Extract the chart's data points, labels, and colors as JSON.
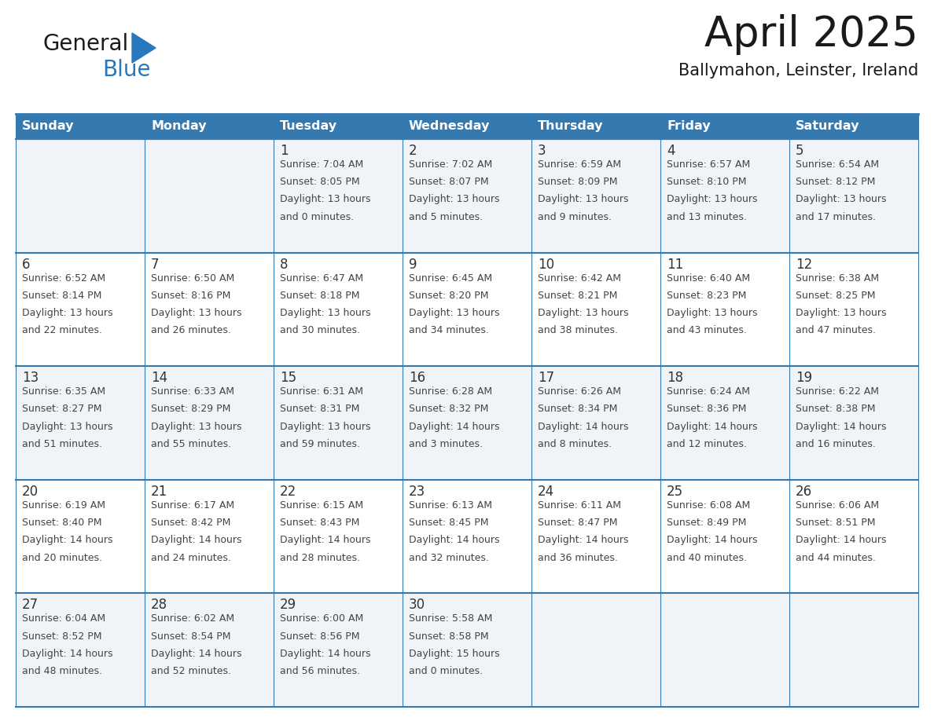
{
  "title": "April 2025",
  "subtitle": "Ballymahon, Leinster, Ireland",
  "header_bg_color": "#3579b1",
  "header_text_color": "#ffffff",
  "weekdays": [
    "Sunday",
    "Monday",
    "Tuesday",
    "Wednesday",
    "Thursday",
    "Friday",
    "Saturday"
  ],
  "row_bg_colors": [
    "#f0f4f8",
    "#ffffff",
    "#f0f4f8",
    "#ffffff",
    "#f0f4f8"
  ],
  "cell_text_color": "#444444",
  "date_text_color": "#333333",
  "border_color": "#3579b1",
  "days": [
    {
      "day": "",
      "col": 0,
      "row": 0,
      "sunrise": "",
      "sunset": "",
      "daylight_l1": "",
      "daylight_l2": ""
    },
    {
      "day": "",
      "col": 1,
      "row": 0,
      "sunrise": "",
      "sunset": "",
      "daylight_l1": "",
      "daylight_l2": ""
    },
    {
      "day": "1",
      "col": 2,
      "row": 0,
      "sunrise": "Sunrise: 7:04 AM",
      "sunset": "Sunset: 8:05 PM",
      "daylight_l1": "Daylight: 13 hours",
      "daylight_l2": "and 0 minutes."
    },
    {
      "day": "2",
      "col": 3,
      "row": 0,
      "sunrise": "Sunrise: 7:02 AM",
      "sunset": "Sunset: 8:07 PM",
      "daylight_l1": "Daylight: 13 hours",
      "daylight_l2": "and 5 minutes."
    },
    {
      "day": "3",
      "col": 4,
      "row": 0,
      "sunrise": "Sunrise: 6:59 AM",
      "sunset": "Sunset: 8:09 PM",
      "daylight_l1": "Daylight: 13 hours",
      "daylight_l2": "and 9 minutes."
    },
    {
      "day": "4",
      "col": 5,
      "row": 0,
      "sunrise": "Sunrise: 6:57 AM",
      "sunset": "Sunset: 8:10 PM",
      "daylight_l1": "Daylight: 13 hours",
      "daylight_l2": "and 13 minutes."
    },
    {
      "day": "5",
      "col": 6,
      "row": 0,
      "sunrise": "Sunrise: 6:54 AM",
      "sunset": "Sunset: 8:12 PM",
      "daylight_l1": "Daylight: 13 hours",
      "daylight_l2": "and 17 minutes."
    },
    {
      "day": "6",
      "col": 0,
      "row": 1,
      "sunrise": "Sunrise: 6:52 AM",
      "sunset": "Sunset: 8:14 PM",
      "daylight_l1": "Daylight: 13 hours",
      "daylight_l2": "and 22 minutes."
    },
    {
      "day": "7",
      "col": 1,
      "row": 1,
      "sunrise": "Sunrise: 6:50 AM",
      "sunset": "Sunset: 8:16 PM",
      "daylight_l1": "Daylight: 13 hours",
      "daylight_l2": "and 26 minutes."
    },
    {
      "day": "8",
      "col": 2,
      "row": 1,
      "sunrise": "Sunrise: 6:47 AM",
      "sunset": "Sunset: 8:18 PM",
      "daylight_l1": "Daylight: 13 hours",
      "daylight_l2": "and 30 minutes."
    },
    {
      "day": "9",
      "col": 3,
      "row": 1,
      "sunrise": "Sunrise: 6:45 AM",
      "sunset": "Sunset: 8:20 PM",
      "daylight_l1": "Daylight: 13 hours",
      "daylight_l2": "and 34 minutes."
    },
    {
      "day": "10",
      "col": 4,
      "row": 1,
      "sunrise": "Sunrise: 6:42 AM",
      "sunset": "Sunset: 8:21 PM",
      "daylight_l1": "Daylight: 13 hours",
      "daylight_l2": "and 38 minutes."
    },
    {
      "day": "11",
      "col": 5,
      "row": 1,
      "sunrise": "Sunrise: 6:40 AM",
      "sunset": "Sunset: 8:23 PM",
      "daylight_l1": "Daylight: 13 hours",
      "daylight_l2": "and 43 minutes."
    },
    {
      "day": "12",
      "col": 6,
      "row": 1,
      "sunrise": "Sunrise: 6:38 AM",
      "sunset": "Sunset: 8:25 PM",
      "daylight_l1": "Daylight: 13 hours",
      "daylight_l2": "and 47 minutes."
    },
    {
      "day": "13",
      "col": 0,
      "row": 2,
      "sunrise": "Sunrise: 6:35 AM",
      "sunset": "Sunset: 8:27 PM",
      "daylight_l1": "Daylight: 13 hours",
      "daylight_l2": "and 51 minutes."
    },
    {
      "day": "14",
      "col": 1,
      "row": 2,
      "sunrise": "Sunrise: 6:33 AM",
      "sunset": "Sunset: 8:29 PM",
      "daylight_l1": "Daylight: 13 hours",
      "daylight_l2": "and 55 minutes."
    },
    {
      "day": "15",
      "col": 2,
      "row": 2,
      "sunrise": "Sunrise: 6:31 AM",
      "sunset": "Sunset: 8:31 PM",
      "daylight_l1": "Daylight: 13 hours",
      "daylight_l2": "and 59 minutes."
    },
    {
      "day": "16",
      "col": 3,
      "row": 2,
      "sunrise": "Sunrise: 6:28 AM",
      "sunset": "Sunset: 8:32 PM",
      "daylight_l1": "Daylight: 14 hours",
      "daylight_l2": "and 3 minutes."
    },
    {
      "day": "17",
      "col": 4,
      "row": 2,
      "sunrise": "Sunrise: 6:26 AM",
      "sunset": "Sunset: 8:34 PM",
      "daylight_l1": "Daylight: 14 hours",
      "daylight_l2": "and 8 minutes."
    },
    {
      "day": "18",
      "col": 5,
      "row": 2,
      "sunrise": "Sunrise: 6:24 AM",
      "sunset": "Sunset: 8:36 PM",
      "daylight_l1": "Daylight: 14 hours",
      "daylight_l2": "and 12 minutes."
    },
    {
      "day": "19",
      "col": 6,
      "row": 2,
      "sunrise": "Sunrise: 6:22 AM",
      "sunset": "Sunset: 8:38 PM",
      "daylight_l1": "Daylight: 14 hours",
      "daylight_l2": "and 16 minutes."
    },
    {
      "day": "20",
      "col": 0,
      "row": 3,
      "sunrise": "Sunrise: 6:19 AM",
      "sunset": "Sunset: 8:40 PM",
      "daylight_l1": "Daylight: 14 hours",
      "daylight_l2": "and 20 minutes."
    },
    {
      "day": "21",
      "col": 1,
      "row": 3,
      "sunrise": "Sunrise: 6:17 AM",
      "sunset": "Sunset: 8:42 PM",
      "daylight_l1": "Daylight: 14 hours",
      "daylight_l2": "and 24 minutes."
    },
    {
      "day": "22",
      "col": 2,
      "row": 3,
      "sunrise": "Sunrise: 6:15 AM",
      "sunset": "Sunset: 8:43 PM",
      "daylight_l1": "Daylight: 14 hours",
      "daylight_l2": "and 28 minutes."
    },
    {
      "day": "23",
      "col": 3,
      "row": 3,
      "sunrise": "Sunrise: 6:13 AM",
      "sunset": "Sunset: 8:45 PM",
      "daylight_l1": "Daylight: 14 hours",
      "daylight_l2": "and 32 minutes."
    },
    {
      "day": "24",
      "col": 4,
      "row": 3,
      "sunrise": "Sunrise: 6:11 AM",
      "sunset": "Sunset: 8:47 PM",
      "daylight_l1": "Daylight: 14 hours",
      "daylight_l2": "and 36 minutes."
    },
    {
      "day": "25",
      "col": 5,
      "row": 3,
      "sunrise": "Sunrise: 6:08 AM",
      "sunset": "Sunset: 8:49 PM",
      "daylight_l1": "Daylight: 14 hours",
      "daylight_l2": "and 40 minutes."
    },
    {
      "day": "26",
      "col": 6,
      "row": 3,
      "sunrise": "Sunrise: 6:06 AM",
      "sunset": "Sunset: 8:51 PM",
      "daylight_l1": "Daylight: 14 hours",
      "daylight_l2": "and 44 minutes."
    },
    {
      "day": "27",
      "col": 0,
      "row": 4,
      "sunrise": "Sunrise: 6:04 AM",
      "sunset": "Sunset: 8:52 PM",
      "daylight_l1": "Daylight: 14 hours",
      "daylight_l2": "and 48 minutes."
    },
    {
      "day": "28",
      "col": 1,
      "row": 4,
      "sunrise": "Sunrise: 6:02 AM",
      "sunset": "Sunset: 8:54 PM",
      "daylight_l1": "Daylight: 14 hours",
      "daylight_l2": "and 52 minutes."
    },
    {
      "day": "29",
      "col": 2,
      "row": 4,
      "sunrise": "Sunrise: 6:00 AM",
      "sunset": "Sunset: 8:56 PM",
      "daylight_l1": "Daylight: 14 hours",
      "daylight_l2": "and 56 minutes."
    },
    {
      "day": "30",
      "col": 3,
      "row": 4,
      "sunrise": "Sunrise: 5:58 AM",
      "sunset": "Sunset: 8:58 PM",
      "daylight_l1": "Daylight: 15 hours",
      "daylight_l2": "and 0 minutes."
    },
    {
      "day": "",
      "col": 4,
      "row": 4,
      "sunrise": "",
      "sunset": "",
      "daylight_l1": "",
      "daylight_l2": ""
    },
    {
      "day": "",
      "col": 5,
      "row": 4,
      "sunrise": "",
      "sunset": "",
      "daylight_l1": "",
      "daylight_l2": ""
    },
    {
      "day": "",
      "col": 6,
      "row": 4,
      "sunrise": "",
      "sunset": "",
      "daylight_l1": "",
      "daylight_l2": ""
    }
  ],
  "num_rows": 5,
  "num_cols": 7,
  "logo_text1": "General",
  "logo_text2": "Blue",
  "logo_text1_color": "#1a1a1a",
  "logo_text2_color": "#2878be",
  "logo_triangle_color": "#2878be",
  "title_fontsize": 38,
  "subtitle_fontsize": 15,
  "day_name_fontsize": 11.5,
  "date_fontsize": 12,
  "cell_fontsize": 9
}
